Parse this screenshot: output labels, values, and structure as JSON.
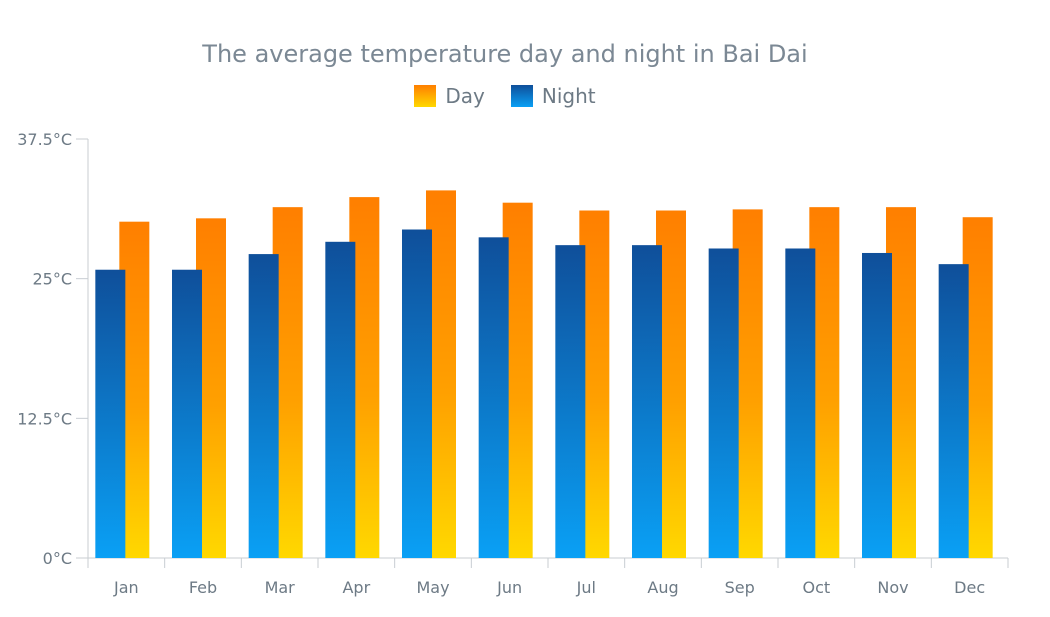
{
  "chart_data": {
    "type": "bar",
    "title": "The average temperature day and night in Bai Dai",
    "categories": [
      "Jan",
      "Feb",
      "Mar",
      "Apr",
      "May",
      "Jun",
      "Jul",
      "Aug",
      "Sep",
      "Oct",
      "Nov",
      "Dec"
    ],
    "series": [
      {
        "name": "Night",
        "values": [
          25.8,
          25.8,
          27.2,
          28.3,
          29.4,
          28.7,
          28.0,
          28.0,
          27.7,
          27.7,
          27.3,
          26.3
        ]
      },
      {
        "name": "Day",
        "values": [
          30.1,
          30.4,
          31.4,
          32.3,
          32.9,
          31.8,
          31.1,
          31.1,
          31.2,
          31.4,
          31.4,
          30.5
        ]
      }
    ],
    "y_ticks": [
      "0°C",
      "12.5°C",
      "25°C",
      "37.5°C"
    ],
    "ylim": [
      0,
      37.5
    ],
    "grid": false,
    "legend_position": "top",
    "colors": {
      "day_top": "#ff7f00",
      "day_bottom": "#ffd800",
      "night_top": "#0f4f9a",
      "night_bottom": "#0aa0f5",
      "axis": "#c8cdd2"
    }
  }
}
